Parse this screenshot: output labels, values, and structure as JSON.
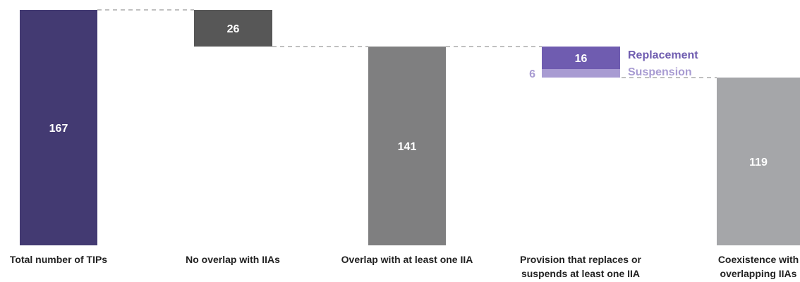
{
  "chart_data": {
    "type": "bar",
    "subtype": "waterfall",
    "categories": [
      [
        "Total number of TIPs"
      ],
      [
        "No overlap with IIAs"
      ],
      [
        "Overlap with at least one IIA"
      ],
      [
        "Provision that replaces or",
        "suspends at least one IIA"
      ],
      [
        "Coexistence with",
        "overlapping IIAs"
      ]
    ],
    "bars": [
      {
        "label": "167",
        "base": 0,
        "top": 167
      },
      {
        "label": "26",
        "base": 141,
        "top": 167
      },
      {
        "label": "141",
        "base": 0,
        "top": 141
      },
      {
        "label": "16",
        "base": 125,
        "top": 141
      },
      {
        "label": "6",
        "base": 119,
        "top": 125
      },
      {
        "label": "119",
        "base": 0,
        "top": 119
      }
    ],
    "stack_labels": {
      "replacement": "Replacement",
      "suspension": "Suspension"
    },
    "ylim": [
      0,
      167
    ],
    "colors": {
      "total": "#433a72",
      "no_overlap": "#575757",
      "overlap": "#7f7f80",
      "replacement": "#6f5cb0",
      "suspension": "#a89bd2",
      "coexistence": "#a5a6a9",
      "connector": "#9a9a9a",
      "suspension_text": "#a89bd2",
      "replacement_text": "#6f5cb0"
    }
  }
}
